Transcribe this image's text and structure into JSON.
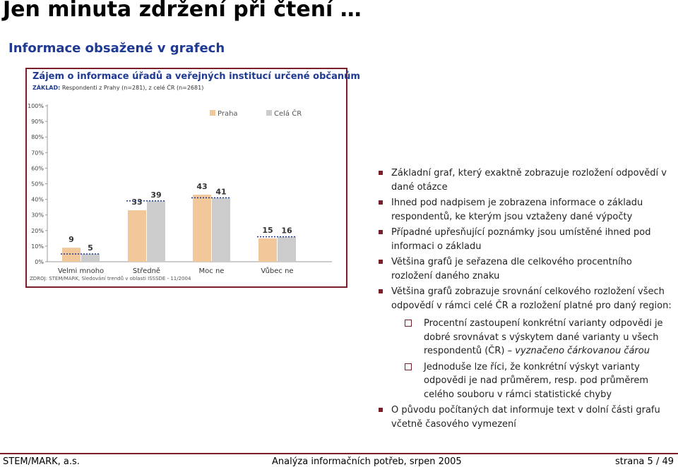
{
  "slide": {
    "title": "Jen minuta zdržení při čtení …",
    "subtitle": "Informace obsažené v grafech"
  },
  "chart_data": {
    "type": "bar",
    "title": "Zájem o informace úřadů a veřejných institucí určené občanům",
    "base_label": "ZÁKLAD:",
    "base_text": " Respondenti z Prahy (n=281), z celé ČR (n=2681)",
    "source": "ZDROJ: STEM/MARK, Sledování trendů v oblasti ISSSDE - 11/2004",
    "categories": [
      "Velmi mnoho",
      "Středně",
      "Moc ne",
      "Vůbec ne"
    ],
    "series": [
      {
        "name": "Praha",
        "values": [
          9,
          33,
          43,
          15
        ],
        "color": "#f2c89b"
      },
      {
        "name": "Celá ČR",
        "values": [
          5,
          39,
          41,
          16
        ],
        "color": "#cccccc"
      }
    ],
    "yticks": [
      "0%",
      "10%",
      "20%",
      "30%",
      "40%",
      "50%",
      "60%",
      "70%",
      "80%",
      "90%",
      "100%"
    ],
    "ylim": [
      0,
      100
    ],
    "grid": false,
    "legend": "top-right"
  },
  "notes": {
    "n1": "Základní graf, který exaktně zobrazuje rozložení odpovědí v dané otázce",
    "n2": "Ihned pod nadpisem je zobrazena informace o základu respondentů, ke kterým jsou vztaženy dané výpočty",
    "n3": "Případné upřesňující poznámky jsou umístěné ihned pod informaci o základu",
    "n4": "Většina grafů je seřazena dle celkového procentního rozložení daného znaku",
    "n5": "Většina grafů zobrazuje srovnání celkového rozložení všech odpovědí v rámci celé ČR a rozložení platné pro daný region:",
    "s1_text": "Procentní zastoupení konkrétní varianty odpovědi je dobré srovnávat s výskytem dané varianty u všech respondentů (ČR) – ",
    "s1_italic": "vyznačeno čárkovanou čárou",
    "s2": "Jednoduše lze říci, že konkrétní výskyt varianty odpovědi je nad průměrem, resp. pod průměrem celého souboru v rámci statistické chyby",
    "n6": "O původu počítaných dat informuje text v dolní části grafu včetně časového vymezení"
  },
  "footer": {
    "left": "STEM/MARK, a.s.",
    "center": "Analýza informačních potřeb, srpen 2005",
    "right": "strana 5 / 49"
  }
}
